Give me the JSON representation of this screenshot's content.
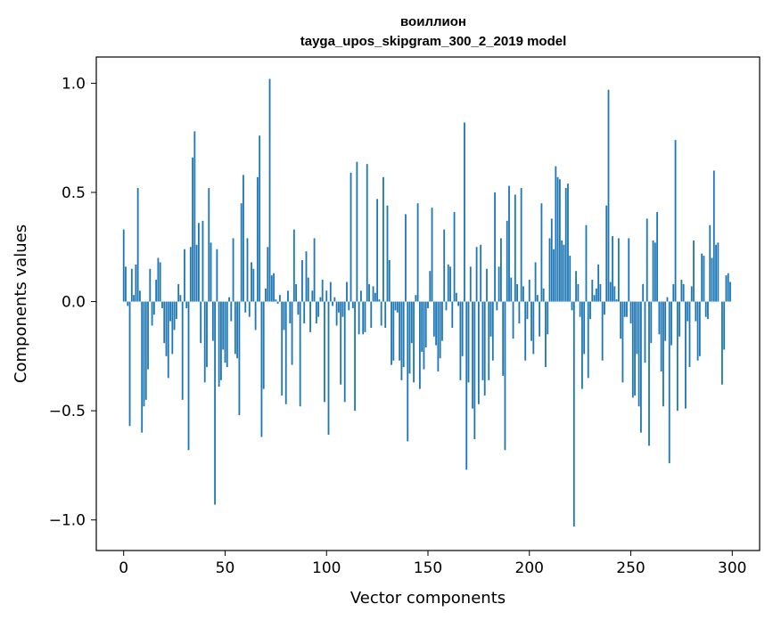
{
  "chart_data": {
    "type": "bar",
    "title": "воиллион",
    "subtitle": "tayga_upos_skipgram_300_2_2019 model",
    "xlabel": "Vector components",
    "ylabel": "Components values",
    "xlim": [
      -13.5,
      313.5
    ],
    "ylim": [
      -1.14,
      1.12
    ],
    "xticks": [
      0,
      50,
      100,
      150,
      200,
      250,
      300
    ],
    "yticks": [
      -1.0,
      -0.5,
      0.0,
      0.5,
      1.0
    ],
    "ytick_labels": [
      "−1.0",
      "−0.5",
      "0.0",
      "0.5",
      "1.0"
    ],
    "bar_color": "#1f77b4",
    "grid": false,
    "values": [
      0.33,
      0.16,
      -0.02,
      -0.57,
      0.15,
      0.03,
      0.17,
      0.52,
      0.05,
      -0.6,
      -0.48,
      -0.45,
      -0.31,
      0.15,
      -0.11,
      -0.06,
      0.1,
      0.2,
      0.18,
      -0.03,
      -0.19,
      -0.25,
      -0.35,
      -0.09,
      -0.24,
      -0.13,
      -0.08,
      0.08,
      0.03,
      -0.45,
      0.24,
      -0.03,
      -0.68,
      0.25,
      0.66,
      0.78,
      0.26,
      0.36,
      -0.19,
      0.37,
      -0.37,
      -0.3,
      0.52,
      0.27,
      -0.18,
      -0.93,
      0.24,
      -0.39,
      -0.36,
      -0.22,
      -0.28,
      -0.3,
      0.02,
      -0.09,
      0.29,
      -0.24,
      -0.26,
      -0.52,
      0.45,
      0.58,
      -0.05,
      0.29,
      -0.07,
      0.18,
      0.15,
      -0.13,
      0.57,
      0.76,
      -0.62,
      -0.4,
      0.06,
      0.25,
      1.02,
      0.12,
      0.13,
      0.01,
      -0.01,
      0.03,
      -0.43,
      -0.13,
      -0.47,
      0.05,
      -0.1,
      -0.29,
      0.33,
      0.08,
      -0.06,
      -0.48,
      0.19,
      -0.1,
      0.23,
      0.11,
      -0.14,
      0.05,
      0.29,
      -0.1,
      -0.07,
      0.02,
      0.1,
      -0.46,
      0.05,
      -0.61,
      0.09,
      -0.02,
      0.02,
      -0.11,
      -0.05,
      -0.38,
      -0.07,
      -0.46,
      0.09,
      -0.04,
      0.59,
      -0.03,
      -0.5,
      0.64,
      -0.15,
      0.05,
      -0.15,
      -0.14,
      0.63,
      0.08,
      -0.12,
      0.07,
      0.04,
      0.47,
      0.01,
      -0.11,
      0.57,
      -0.12,
      0.44,
      0.19,
      -0.29,
      -0.27,
      -0.04,
      -0.05,
      -0.27,
      -0.36,
      -0.3,
      0.4,
      -0.64,
      -0.33,
      -0.19,
      -0.37,
      0.03,
      0.45,
      -0.4,
      -0.23,
      -0.31,
      -0.21,
      -0.03,
      0.14,
      0.43,
      -0.16,
      -0.2,
      -0.32,
      -0.26,
      -0.18,
      0.33,
      -0.04,
      0.17,
      0.16,
      -0.12,
      0.41,
      0.04,
      -0.02,
      -0.36,
      -0.25,
      0.82,
      -0.77,
      -0.37,
      0.16,
      -0.49,
      -0.63,
      0.25,
      -0.47,
      0.26,
      -0.36,
      -0.43,
      0.15,
      -0.36,
      -0.16,
      -0.27,
      0.5,
      -0.04,
      0.16,
      0.29,
      -0.34,
      -0.68,
      0.37,
      0.53,
      0.11,
      -0.17,
      0.49,
      0.08,
      -0.1,
      0.52,
      0.07,
      -0.27,
      -0.08,
      0.1,
      -0.18,
      -0.24,
      0.18,
      0.03,
      -0.16,
      0.45,
      0.06,
      -0.3,
      -0.15,
      0.29,
      0.38,
      0.24,
      0.62,
      0.57,
      0.56,
      0.28,
      0.26,
      0.52,
      0.54,
      0.21,
      -0.04,
      -1.03,
      0.14,
      0.08,
      -0.07,
      -0.4,
      -0.24,
      0.35,
      -0.35,
      -0.08,
      0.1,
      0.03,
      0.06,
      0.17,
      0.08,
      -0.27,
      -0.06,
      0.44,
      0.97,
      0.09,
      0.3,
      0.07,
      0.01,
      0.29,
      -0.17,
      -0.37,
      -0.07,
      -0.07,
      0.29,
      -0.1,
      -0.44,
      -0.43,
      -0.24,
      -0.48,
      -0.6,
      0.08,
      -0.28,
      0.38,
      -0.66,
      -0.19,
      0.28,
      0.27,
      0.41,
      -0.15,
      -0.32,
      -0.48,
      -0.18,
      0.02,
      -0.74,
      -0.2,
      0.08,
      0.74,
      -0.5,
      -0.16,
      0.1,
      0.08,
      -0.49,
      -0.09,
      -0.3,
      0.07,
      0.28,
      -0.09,
      -0.27,
      -0.25,
      0.22,
      0.21,
      -0.07,
      -0.08,
      0.35,
      0.2,
      0.6,
      0.26,
      0.27,
      0.0,
      -0.38,
      -0.22,
      0.12,
      0.13,
      0.09
    ]
  }
}
